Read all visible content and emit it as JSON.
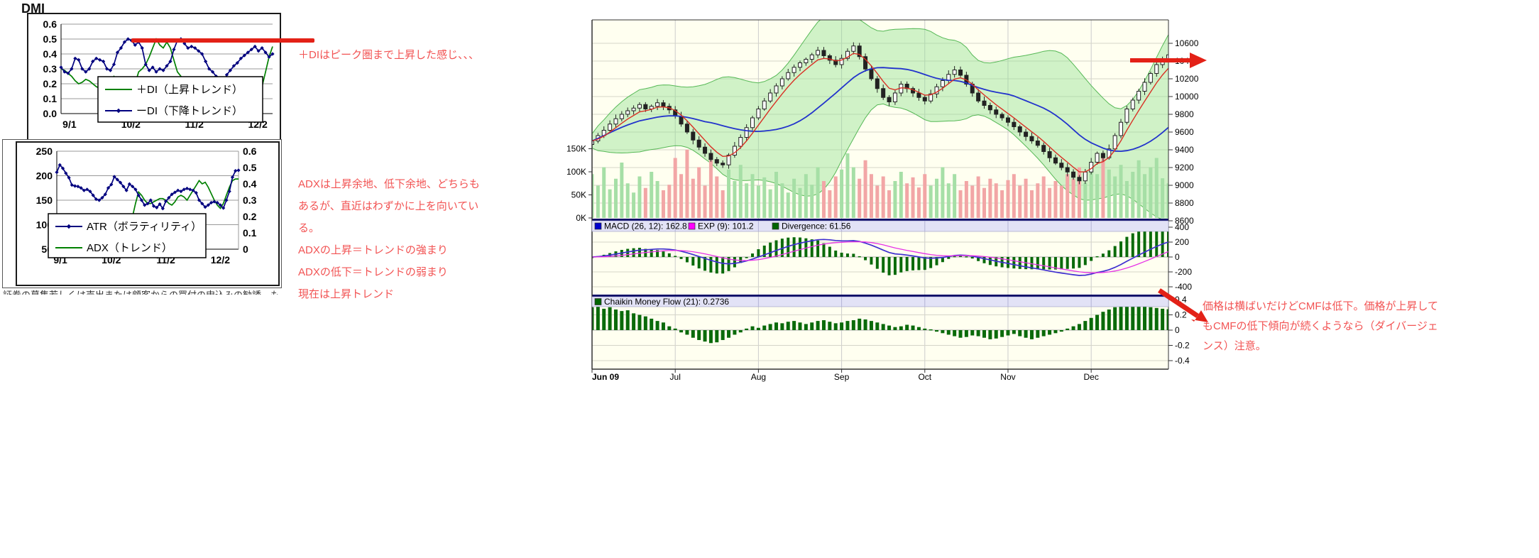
{
  "left_section": {
    "title": "DMI",
    "disclaimer": "証券の募集若しくは売出または顧客からの買付の申込みの勧誘、もしくは顧客に対する投資助言...",
    "colors": {
      "plus_di": "#008000",
      "minus_di": "#00007f",
      "atr": "#00007f",
      "adx": "#008000",
      "grid": "#999999",
      "peak_line": "#e32117"
    }
  },
  "annotations": {
    "color": "#f25353",
    "arrow_color": "#e32117",
    "a1": "＋DIはピーク圏まで上昇した感じ、、、",
    "a2": {
      "lines": [
        "ADXは上昇余地、低下余地、どちらも",
        "あるが、直近はわずかに上を向いてい",
        "る。",
        "ADXの上昇＝トレンドの強まり",
        "ADXの低下＝トレンドの弱まり",
        "現在は上昇トレンド"
      ]
    },
    "a3": {
      "lines": [
        "価格は横ばいだけどCMFは低下。価格が上昇して",
        "もCMFの低下傾向が続くようなら（ダイバージェ",
        "ンス）注意。"
      ]
    }
  },
  "chart_data": [
    {
      "id": "dmi",
      "type": "line",
      "title": "DMI",
      "ylim": [
        0,
        0.6
      ],
      "y_ticks": [
        "0.6",
        "0.5",
        "0.4",
        "0.3",
        "0.2",
        "0.1",
        "0.0"
      ],
      "x_ticks": [
        "9/1",
        "10/2",
        "11/2",
        "12/2"
      ],
      "legend_position": "bottom-left-overlap",
      "peak_line_value": 0.51,
      "series": [
        {
          "name": "＋DI（上昇トレンド）",
          "color": "#008000",
          "marker": "none",
          "values": [
            0.3,
            0.29,
            0.27,
            0.25,
            0.22,
            0.2,
            0.21,
            0.23,
            0.22,
            0.2,
            0.18,
            0.17,
            0.18,
            0.2,
            0.22,
            0.25,
            0.22,
            0.18,
            0.15,
            0.14,
            0.16,
            0.2,
            0.28,
            0.3,
            0.33,
            0.38,
            0.44,
            0.5,
            0.46,
            0.44,
            0.48,
            0.44,
            0.36,
            0.28,
            0.25,
            0.22,
            0.21,
            0.22,
            0.21,
            0.22,
            0.23,
            0.21,
            0.2,
            0.21,
            0.22,
            0.21,
            0.19,
            0.18,
            0.16,
            0.15,
            0.16,
            0.15,
            0.14,
            0.15,
            0.16,
            0.15,
            0.14,
            0.18,
            0.28,
            0.38,
            0.45
          ]
        },
        {
          "name": "ーDI（下降トレンド）",
          "color": "#00007f",
          "marker": "diamond",
          "values": [
            0.31,
            0.28,
            0.27,
            0.3,
            0.37,
            0.36,
            0.3,
            0.28,
            0.3,
            0.35,
            0.37,
            0.36,
            0.35,
            0.3,
            0.29,
            0.33,
            0.41,
            0.44,
            0.48,
            0.5,
            0.49,
            0.46,
            0.48,
            0.44,
            0.33,
            0.29,
            0.31,
            0.28,
            0.3,
            0.29,
            0.32,
            0.35,
            0.43,
            0.49,
            0.5,
            0.47,
            0.44,
            0.45,
            0.44,
            0.42,
            0.4,
            0.35,
            0.3,
            0.28,
            0.25,
            0.18,
            0.2,
            0.26,
            0.29,
            0.32,
            0.34,
            0.37,
            0.39,
            0.41,
            0.43,
            0.45,
            0.42,
            0.44,
            0.41,
            0.38,
            0.4
          ]
        }
      ]
    },
    {
      "id": "atr_adx",
      "type": "line",
      "left_ylim": [
        50,
        250
      ],
      "left_y_ticks": [
        "250",
        "200",
        "150",
        "100",
        "50"
      ],
      "right_ylim": [
        0,
        0.6
      ],
      "right_y_ticks": [
        "0.6",
        "0.5",
        "0.4",
        "0.3",
        "0.2",
        "0.1",
        "0"
      ],
      "x_ticks": [
        "9/1",
        "10/2",
        "11/2",
        "12/2"
      ],
      "series": [
        {
          "name": "ATR（ボラティリティ）",
          "color": "#00007f",
          "axis": "left",
          "marker": "diamond",
          "values": [
            207,
            222,
            215,
            205,
            196,
            181,
            179,
            178,
            175,
            170,
            172,
            168,
            160,
            152,
            150,
            155,
            162,
            175,
            182,
            198,
            192,
            186,
            178,
            170,
            183,
            178,
            172,
            160,
            150,
            140,
            143,
            150,
            138,
            135,
            142,
            133,
            148,
            155,
            162,
            166,
            170,
            168,
            172,
            174,
            172,
            170,
            165,
            150,
            143,
            136,
            140,
            145,
            147,
            145,
            140,
            134,
            150,
            168,
            197,
            210,
            211
          ]
        },
        {
          "name": "ADX（トレンド）",
          "color": "#008000",
          "axis": "right",
          "marker": "none",
          "values": [
            null,
            null,
            null,
            null,
            null,
            null,
            null,
            null,
            null,
            null,
            null,
            null,
            null,
            null,
            null,
            null,
            null,
            null,
            null,
            null,
            null,
            null,
            null,
            null,
            0.12,
            0.2,
            0.28,
            0.35,
            0.33,
            0.3,
            0.28,
            0.28,
            0.29,
            0.3,
            0.31,
            0.31,
            0.3,
            0.28,
            0.27,
            0.29,
            0.32,
            0.33,
            0.32,
            0.3,
            0.33,
            0.36,
            0.39,
            0.42,
            0.4,
            0.41,
            0.38,
            0.34,
            0.3,
            0.27,
            0.25,
            0.28,
            0.33,
            0.38,
            0.42,
            0.43,
            0.43
          ]
        }
      ]
    },
    {
      "id": "price",
      "type": "candlestick",
      "ylim": [
        8600,
        10800
      ],
      "y_ticks": [
        "10600",
        "10400",
        "10200",
        "10000",
        "9800",
        "9600",
        "9400",
        "9200",
        "9000",
        "8800",
        "8600"
      ],
      "x_ticks": [
        "Jun 09",
        "Jul",
        "Aug",
        "Sep",
        "Oct",
        "Nov",
        "Dec"
      ],
      "overlays": [
        "bollinger-band-green",
        "sma20-blue",
        "ema5-red"
      ],
      "volume_ticks": [
        "150K",
        "100K",
        "50K",
        "0K"
      ],
      "closes": [
        9500,
        9560,
        9620,
        9690,
        9750,
        9800,
        9840,
        9870,
        9910,
        9860,
        9890,
        9930,
        9890,
        9850,
        9780,
        9690,
        9600,
        9510,
        9430,
        9360,
        9290,
        9250,
        9230,
        9340,
        9440,
        9540,
        9650,
        9760,
        9860,
        9950,
        10040,
        10120,
        10200,
        10270,
        10330,
        10380,
        10420,
        10470,
        10520,
        10460,
        10410,
        10360,
        10430,
        10510,
        10570,
        10450,
        10310,
        10200,
        10090,
        9990,
        9940,
        10040,
        10140,
        10090,
        10040,
        9990,
        9950,
        10030,
        10110,
        10180,
        10250,
        10300,
        10240,
        10140,
        10040,
        9950,
        9900,
        9850,
        9800,
        9760,
        9710,
        9660,
        9600,
        9550,
        9500,
        9450,
        9380,
        9310,
        9250,
        9200,
        9150,
        9090,
        9050,
        9150,
        9260,
        9360,
        9310,
        9410,
        9560,
        9710,
        9860,
        9960,
        10060,
        10160,
        10260,
        10360,
        10420,
        10470
      ],
      "volumes_k": [
        95,
        70,
        110,
        62,
        85,
        120,
        75,
        55,
        90,
        65,
        100,
        80,
        60,
        72,
        130,
        95,
        148,
        85,
        110,
        70,
        125,
        90,
        60,
        105,
        80,
        115,
        75,
        95,
        70,
        88,
        62,
        100,
        75,
        55,
        85,
        65,
        95,
        72,
        110,
        80,
        60,
        90,
        105,
        140,
        110,
        85,
        125,
        95,
        70,
        90,
        60,
        80,
        100,
        75,
        88,
        66,
        95,
        70,
        85,
        110,
        75,
        95,
        60,
        80,
        70,
        90,
        65,
        85,
        75,
        60,
        82,
        95,
        70,
        85,
        60,
        75,
        90,
        65,
        80,
        70,
        95,
        85,
        110,
        76,
        120,
        95,
        135,
        105,
        90,
        115,
        80,
        100,
        125,
        95,
        110,
        130,
        86,
        75
      ]
    },
    {
      "id": "macd",
      "type": "line+bar",
      "computed_from": "price.closes",
      "y_ticks": [
        "400",
        "200",
        "0",
        "-200",
        "-400"
      ],
      "legend": [
        {
          "label": "MACD (26, 12): 162.8",
          "color": "#0000cc"
        },
        {
          "label": "EXP (9): 101.2",
          "color": "#ff00ff"
        },
        {
          "label": "Divergence: 61.56",
          "color": "#006400"
        }
      ]
    },
    {
      "id": "cmf",
      "type": "bar",
      "y_ticks": [
        "0.4",
        "0.2",
        "0",
        "-0.2",
        "-0.4"
      ],
      "legend": [
        {
          "label": "Chaikin Money Flow (21): 0.2736",
          "color": "#006400"
        }
      ],
      "values": [
        0.3,
        0.32,
        0.28,
        0.3,
        0.27,
        0.25,
        0.26,
        0.22,
        0.2,
        0.18,
        0.15,
        0.12,
        0.1,
        0.05,
        0.02,
        -0.03,
        -0.06,
        -0.1,
        -0.13,
        -0.15,
        -0.17,
        -0.16,
        -0.13,
        -0.1,
        -0.06,
        -0.03,
        0.02,
        0.05,
        0.03,
        0.06,
        0.08,
        0.1,
        0.09,
        0.11,
        0.12,
        0.1,
        0.08,
        0.1,
        0.12,
        0.13,
        0.11,
        0.09,
        0.1,
        0.12,
        0.13,
        0.15,
        0.14,
        0.12,
        0.1,
        0.08,
        0.06,
        0.04,
        0.05,
        0.07,
        0.06,
        0.04,
        0.02,
        0.01,
        -0.02,
        -0.04,
        -0.06,
        -0.08,
        -0.1,
        -0.09,
        -0.07,
        -0.08,
        -0.1,
        -0.12,
        -0.11,
        -0.09,
        -0.07,
        -0.05,
        -0.08,
        -0.1,
        -0.12,
        -0.1,
        -0.08,
        -0.06,
        -0.04,
        -0.02,
        0.02,
        0.05,
        0.08,
        0.12,
        0.16,
        0.2,
        0.24,
        0.27,
        0.3,
        0.32,
        0.33,
        0.34,
        0.32,
        0.31,
        0.3,
        0.29,
        0.28,
        0.2736
      ]
    }
  ]
}
